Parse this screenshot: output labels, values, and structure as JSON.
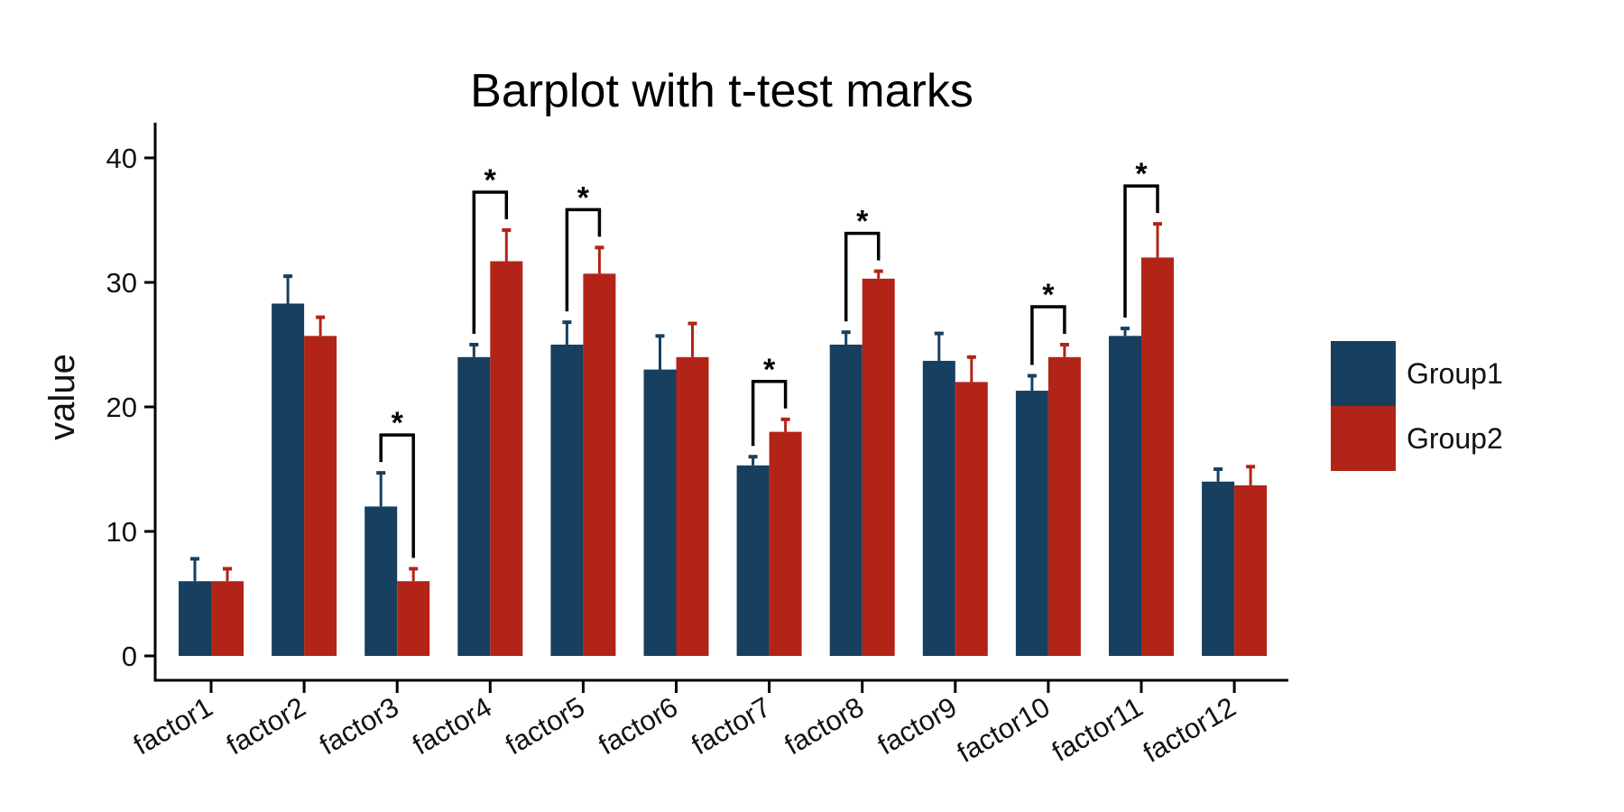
{
  "chart_data": {
    "type": "bar",
    "title": "Barplot with t-test marks",
    "xlabel": "",
    "ylabel": "value",
    "ylim": [
      0,
      42
    ],
    "yticks": [
      0,
      10,
      20,
      30,
      40
    ],
    "grid": false,
    "legend_position": "right",
    "categories": [
      "factor1",
      "factor2",
      "factor3",
      "factor4",
      "factor5",
      "factor6",
      "factor7",
      "factor8",
      "factor9",
      "factor10",
      "factor11",
      "factor12"
    ],
    "series": [
      {
        "name": "Group1",
        "color": "#173F5F",
        "values": [
          6,
          28.3,
          12,
          24,
          25,
          23,
          15.3,
          25,
          23.7,
          21.3,
          25.7,
          14
        ],
        "errors": [
          1.8,
          2.2,
          2.7,
          1.0,
          1.8,
          2.7,
          0.7,
          1.0,
          2.2,
          1.2,
          0.6,
          1.0
        ]
      },
      {
        "name": "Group2",
        "color": "#B22418",
        "values": [
          6,
          25.7,
          6,
          31.7,
          30.7,
          24,
          18,
          30.3,
          22,
          24,
          32,
          13.7
        ],
        "errors": [
          1.0,
          1.5,
          1.0,
          2.5,
          2.1,
          2.7,
          1.0,
          0.6,
          2.0,
          1.0,
          2.7,
          1.5
        ]
      }
    ],
    "significance": [
      {
        "category": "factor3",
        "label": "*"
      },
      {
        "category": "factor4",
        "label": "*"
      },
      {
        "category": "factor5",
        "label": "*"
      },
      {
        "category": "factor7",
        "label": "*"
      },
      {
        "category": "factor8",
        "label": "*"
      },
      {
        "category": "factor10",
        "label": "*"
      },
      {
        "category": "factor11",
        "label": "*"
      }
    ]
  }
}
